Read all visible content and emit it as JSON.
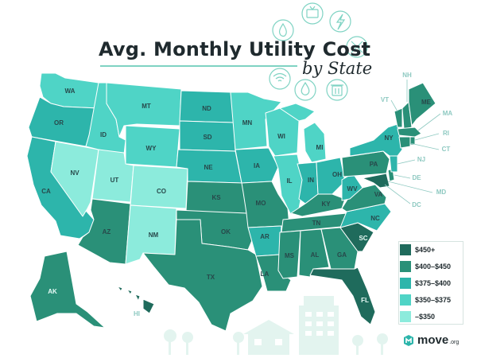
{
  "title": {
    "main": "Avg. Monthly Utility Cost",
    "sub": "by State"
  },
  "legend": [
    {
      "label": "$450+",
      "color": "#1f6b5c"
    },
    {
      "label": "$400–$450",
      "color": "#2a9078"
    },
    {
      "label": "$375–$400",
      "color": "#2db5ab"
    },
    {
      "label": "$350–$375",
      "color": "#4fd4c6"
    },
    {
      "label": "–$350",
      "color": "#8cebdc"
    }
  ],
  "brand": {
    "name": "move",
    "tld": ".org"
  },
  "icons": [
    "flame-icon",
    "tv-icon",
    "lightning-icon",
    "tools-icon",
    "wifi-icon",
    "water-drop-icon",
    "trash-icon"
  ],
  "states": {
    "WA": "WA",
    "OR": "OR",
    "CA": "CA",
    "NV": "NV",
    "ID": "ID",
    "MT": "MT",
    "WY": "WY",
    "UT": "UT",
    "CO": "CO",
    "AZ": "AZ",
    "NM": "NM",
    "ND": "ND",
    "SD": "SD",
    "NE": "NE",
    "KS": "KS",
    "OK": "OK",
    "TX": "TX",
    "MN": "MN",
    "IA": "IA",
    "MO": "MO",
    "AR": "AR",
    "LA": "LA",
    "WI": "WI",
    "IL": "IL",
    "MI": "MI",
    "IN": "IN",
    "OH": "OH",
    "KY": "KY",
    "TN": "TN",
    "MS": "MS",
    "AL": "AL",
    "GA": "GA",
    "FL": "FL",
    "SC": "SC",
    "NC": "NC",
    "VA": "VA",
    "WV": "WV",
    "PA": "PA",
    "NY": "NY",
    "NJ": "NJ",
    "DE": "DE",
    "MD": "MD",
    "DC": "DC",
    "CT": "CT",
    "RI": "RI",
    "MA": "MA",
    "VT": "VT",
    "NH": "NH",
    "ME": "ME",
    "AK": "AK",
    "HI": "HI"
  }
}
